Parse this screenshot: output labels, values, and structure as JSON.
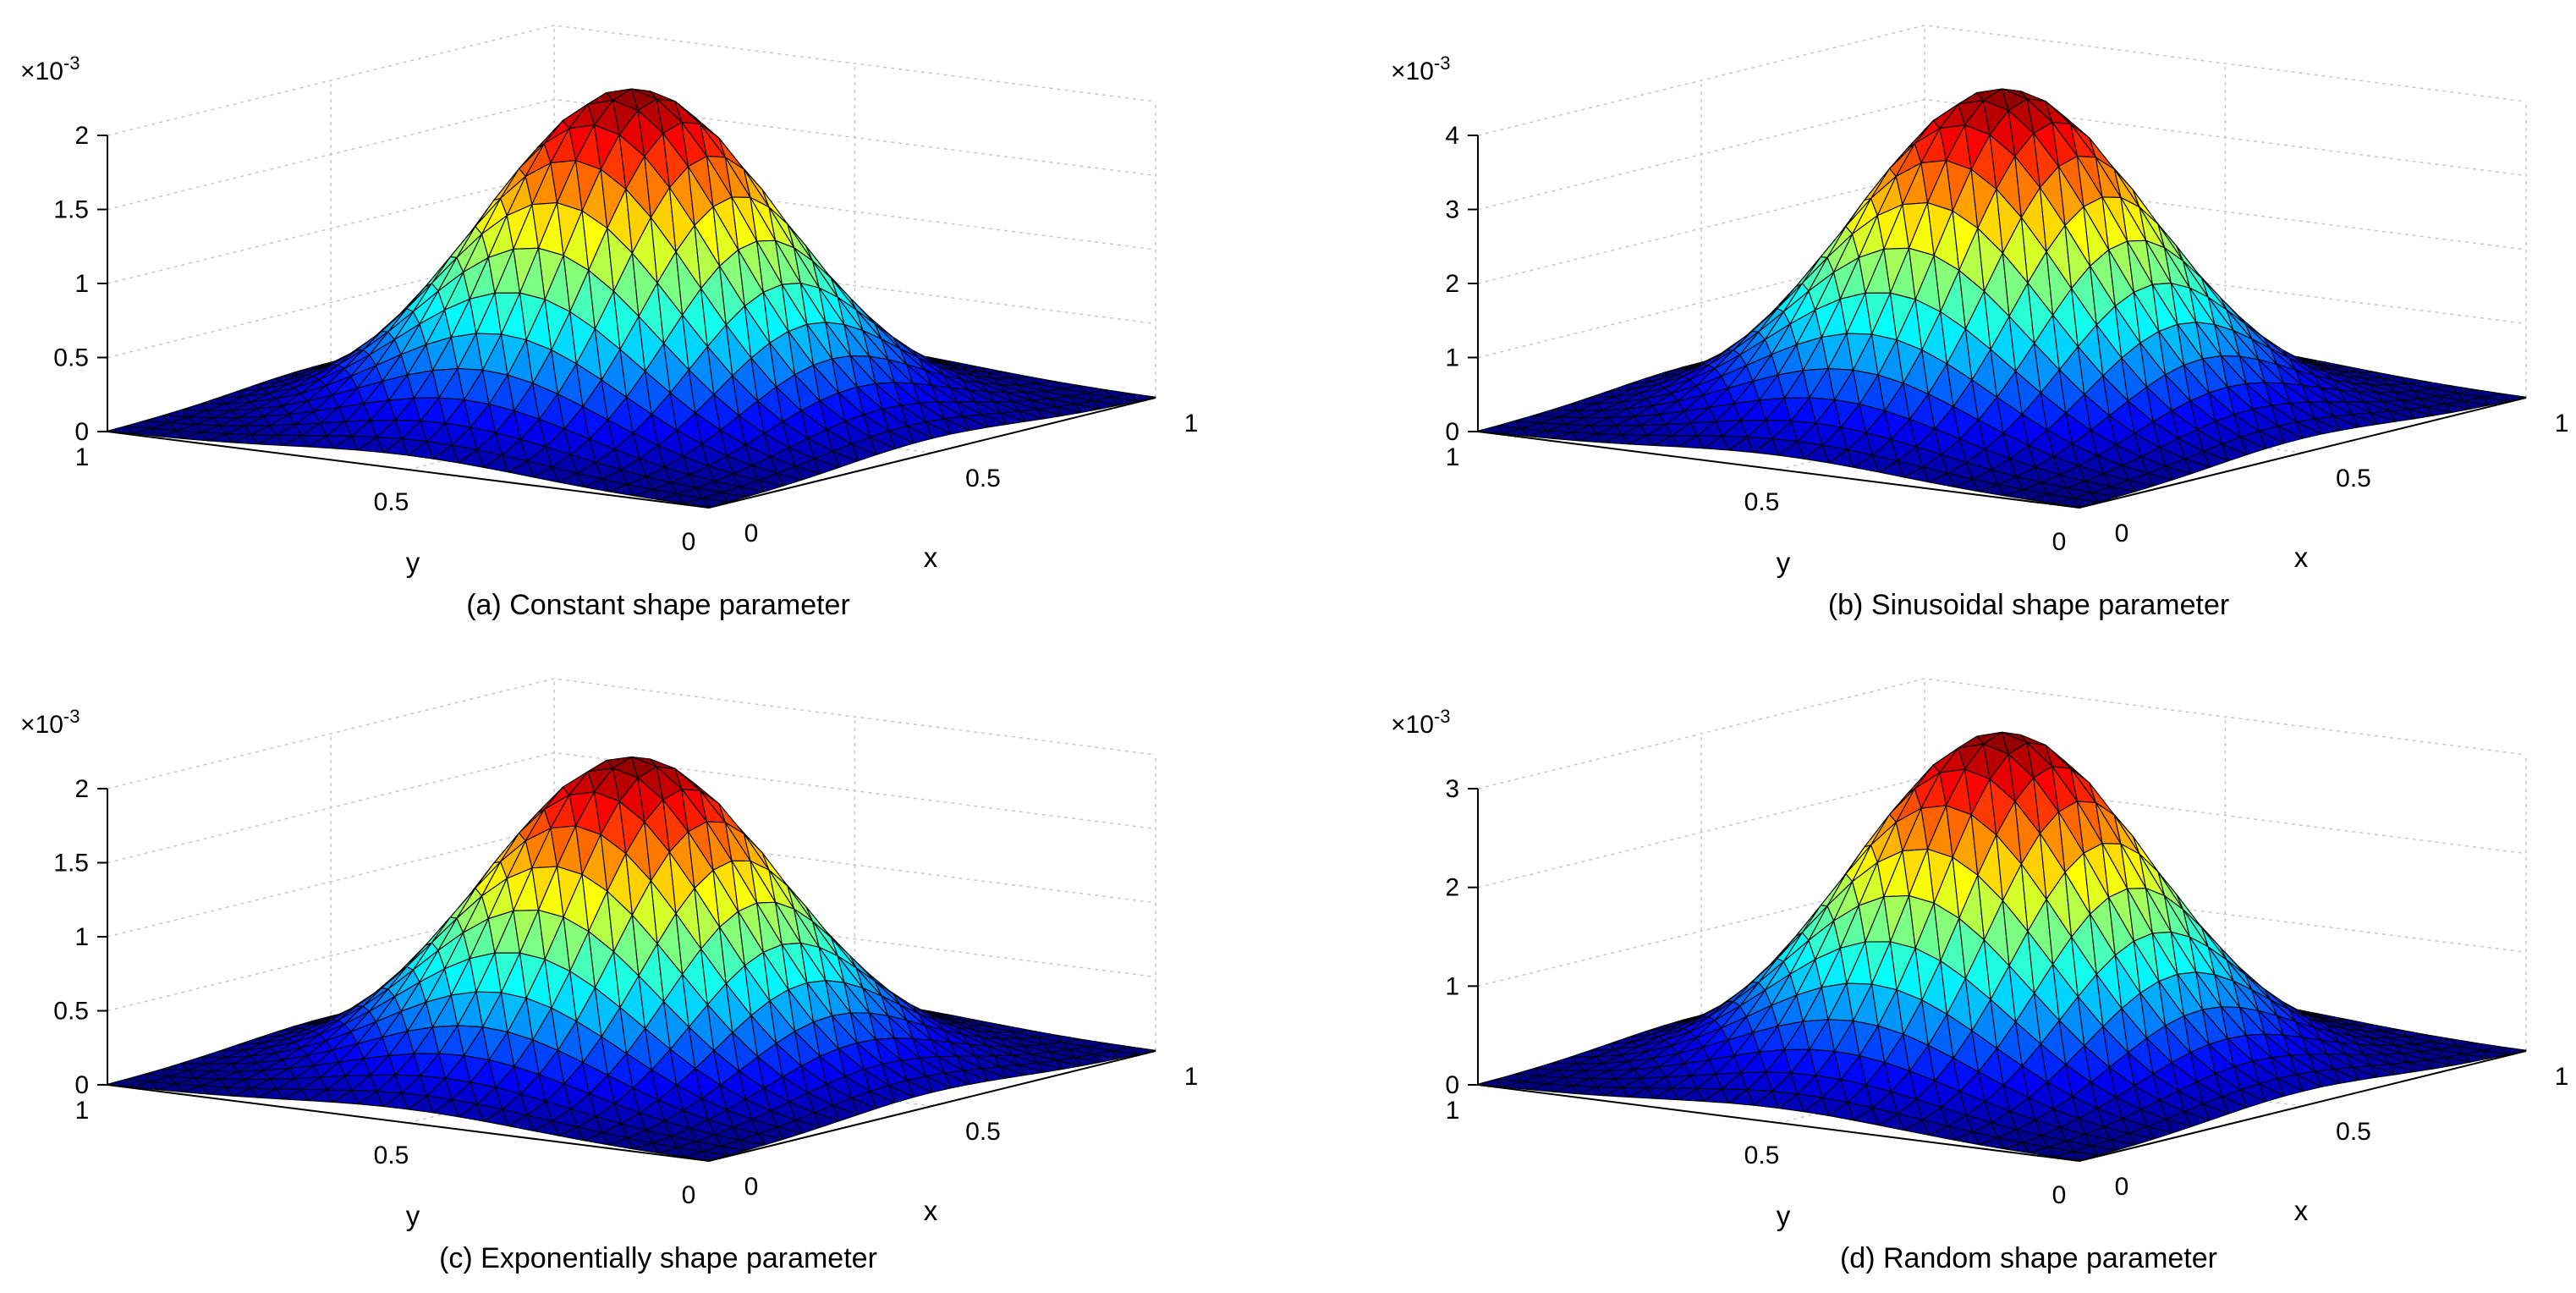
{
  "chart_data": [
    {
      "type": "surface",
      "caption": "(a) Constant shape parameter",
      "xlabel": "x",
      "ylabel": "y",
      "multiplier": "×10",
      "multiplier_exp": "-3",
      "xlim": [
        0,
        1
      ],
      "ylim": [
        0,
        1
      ],
      "zlim": [
        0,
        2
      ],
      "xticks": [
        "0",
        "0.5",
        "1"
      ],
      "yticks": [
        "0",
        "0.5",
        "1"
      ],
      "zticks": [
        0,
        0.5,
        1,
        1.5,
        2
      ],
      "zticklabels": [
        "0",
        "0.5",
        "1",
        "1.5",
        "2"
      ],
      "peak": 2.2,
      "peak_location": [
        0.5,
        0.5
      ],
      "colormap": "jet",
      "grid": "on"
    },
    {
      "type": "surface",
      "caption": "(b) Sinusoidal shape parameter",
      "xlabel": "x",
      "ylabel": "y",
      "multiplier": "×10",
      "multiplier_exp": "-3",
      "xlim": [
        0,
        1
      ],
      "ylim": [
        0,
        1
      ],
      "zlim": [
        0,
        4
      ],
      "xticks": [
        "0",
        "0.5",
        "1"
      ],
      "yticks": [
        "0",
        "0.5",
        "1"
      ],
      "zticks": [
        0,
        1,
        2,
        3,
        4
      ],
      "zticklabels": [
        "0",
        "1",
        "2",
        "3",
        "4"
      ],
      "peak": 4.4,
      "peak_location": [
        0.5,
        0.5
      ],
      "colormap": "jet",
      "grid": "on"
    },
    {
      "type": "surface",
      "caption": "(c) Exponentially shape parameter",
      "xlabel": "x",
      "ylabel": "y",
      "multiplier": "×10",
      "multiplier_exp": "-3",
      "xlim": [
        0,
        1
      ],
      "ylim": [
        0,
        1
      ],
      "zlim": [
        0,
        2
      ],
      "xticks": [
        "0",
        "0.5",
        "1"
      ],
      "yticks": [
        "0",
        "0.5",
        "1"
      ],
      "zticks": [
        0,
        0.5,
        1,
        1.5,
        2
      ],
      "zticklabels": [
        "0",
        "0.5",
        "1",
        "1.5",
        "2"
      ],
      "peak": 2.1,
      "peak_location": [
        0.5,
        0.5
      ],
      "colormap": "jet",
      "grid": "on"
    },
    {
      "type": "surface",
      "caption": "(d) Random shape parameter",
      "xlabel": "x",
      "ylabel": "y",
      "multiplier": "×10",
      "multiplier_exp": "-3",
      "xlim": [
        0,
        1
      ],
      "ylim": [
        0,
        1
      ],
      "zlim": [
        0,
        3
      ],
      "xticks": [
        "0",
        "0.5",
        "1"
      ],
      "yticks": [
        "0",
        "0.5",
        "1"
      ],
      "zticks": [
        0,
        1,
        2,
        3
      ],
      "zticklabels": [
        "0",
        "1",
        "2",
        "3"
      ],
      "peak": 3.4,
      "peak_location": [
        0.5,
        0.5
      ],
      "colormap": "jet",
      "grid": "on"
    }
  ]
}
